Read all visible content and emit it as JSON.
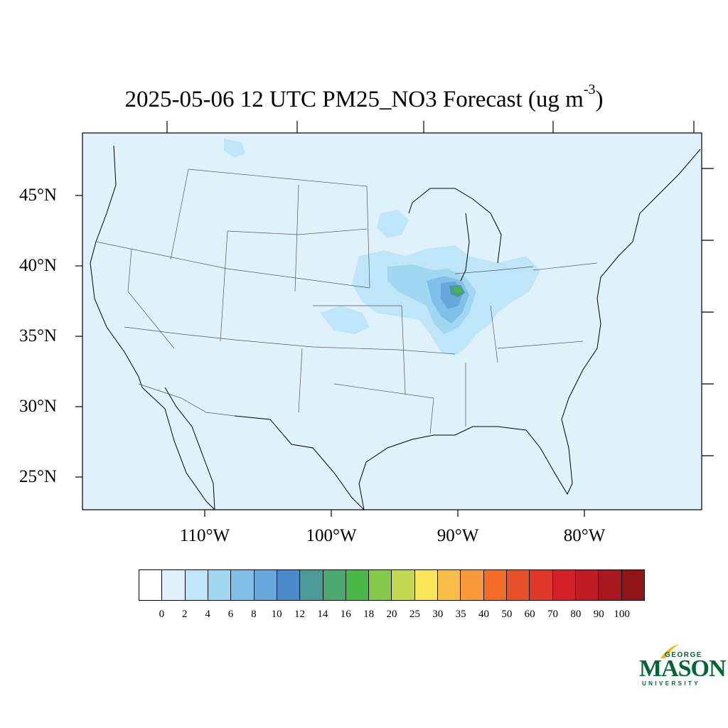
{
  "title": {
    "main": "2025-05-06 12 UTC PM25_NO3 Forecast (ug m",
    "sup": "-3",
    "close": ")"
  },
  "map": {
    "ocean_color": "#dff2fb",
    "lat_labels": [
      "45°N",
      "40°N",
      "35°N",
      "30°N",
      "25°N"
    ],
    "lon_labels": [
      "110°W",
      "100°W",
      "90°W",
      "80°W"
    ]
  },
  "colorbar": {
    "colors": [
      "#ffffff",
      "#dff2fb",
      "#bfe6f8",
      "#a0d8f2",
      "#80c0e8",
      "#67a8dc",
      "#4a8acb",
      "#4a9a98",
      "#4aa870",
      "#4ab848",
      "#86c84a",
      "#c2d850",
      "#f8e658",
      "#f8be48",
      "#f89a3a",
      "#f26c28",
      "#e85028",
      "#e03828",
      "#d42028",
      "#c01c24",
      "#a81820",
      "#901418"
    ],
    "labels": [
      "0",
      "2",
      "4",
      "6",
      "8",
      "10",
      "12",
      "14",
      "16",
      "18",
      "20",
      "25",
      "30",
      "35",
      "40",
      "50",
      "60",
      "70",
      "80",
      "90",
      "100"
    ]
  },
  "logo": {
    "george": "GEORGE",
    "mason": "MASON",
    "university": "UNIVERSITY"
  }
}
